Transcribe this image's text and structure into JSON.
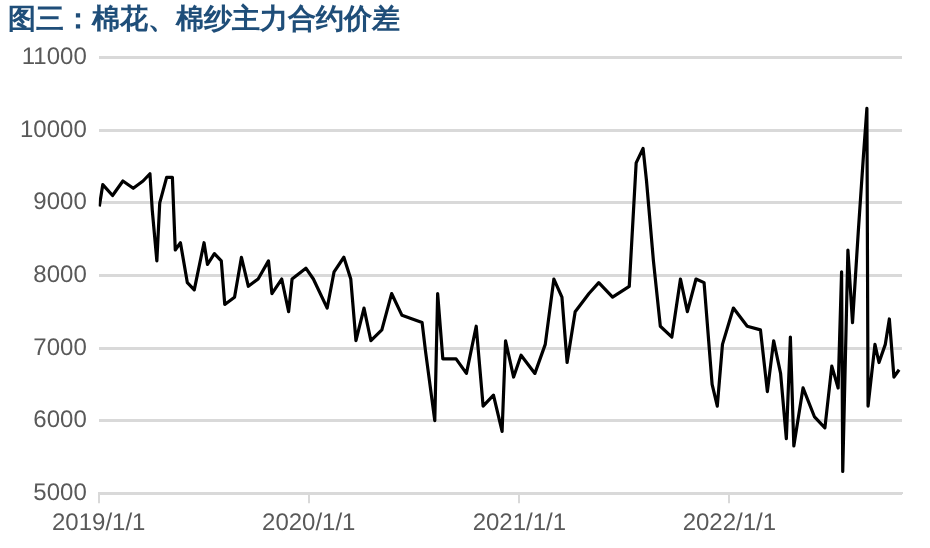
{
  "chart_data": {
    "type": "line",
    "title": "图三：棉花、棉纱主力合约价差",
    "series": [
      {
        "color": "#000000",
        "x": [
          "2019-01-02",
          "2019-01-08",
          "2019-01-25",
          "2019-02-12",
          "2019-03-02",
          "2019-03-19",
          "2019-03-31",
          "2019-04-04",
          "2019-04-12",
          "2019-04-17",
          "2019-04-29",
          "2019-05-09",
          "2019-05-14",
          "2019-05-23",
          "2019-06-04",
          "2019-06-16",
          "2019-07-03",
          "2019-07-09",
          "2019-07-21",
          "2019-08-02",
          "2019-08-08",
          "2019-08-25",
          "2019-09-06",
          "2019-09-18",
          "2019-10-05",
          "2019-10-23",
          "2019-10-29",
          "2019-11-15",
          "2019-11-27",
          "2019-12-03",
          "2019-12-27",
          "2020-01-09",
          "2020-02-02",
          "2020-02-14",
          "2020-03-02",
          "2020-03-14",
          "2020-03-23",
          "2020-04-06",
          "2020-04-18",
          "2020-05-07",
          "2020-05-24",
          "2020-06-11",
          "2020-06-29",
          "2020-07-16",
          "2020-07-22",
          "2020-08-07",
          "2020-08-12",
          "2020-08-21",
          "2020-09-13",
          "2020-10-01",
          "2020-10-18",
          "2020-10-30",
          "2020-11-17",
          "2020-12-02",
          "2020-12-08",
          "2020-12-22",
          "2021-01-04",
          "2021-01-28",
          "2021-02-15",
          "2021-03-02",
          "2021-03-16",
          "2021-03-25",
          "2021-04-08",
          "2021-05-02",
          "2021-05-19",
          "2021-06-12",
          "2021-07-11",
          "2021-07-23",
          "2021-08-04",
          "2021-08-10",
          "2021-08-22",
          "2021-09-03",
          "2021-09-23",
          "2021-10-08",
          "2021-10-20",
          "2021-11-04",
          "2021-11-18",
          "2021-12-02",
          "2021-12-11",
          "2021-12-20",
          "2022-01-08",
          "2022-02-01",
          "2022-02-24",
          "2022-03-08",
          "2022-03-19",
          "2022-03-31",
          "2022-04-10",
          "2022-04-17",
          "2022-04-23",
          "2022-05-09",
          "2022-05-29",
          "2022-06-16",
          "2022-06-28",
          "2022-07-09",
          "2022-07-15",
          "2022-07-17",
          "2022-07-26",
          "2022-08-03",
          "2022-08-13",
          "2022-08-22",
          "2022-08-28",
          "2022-08-30",
          "2022-09-11",
          "2022-09-18",
          "2022-09-29",
          "2022-10-06",
          "2022-10-14",
          "2022-10-23"
        ],
        "values": [
          8950,
          9250,
          9100,
          9300,
          9200,
          9300,
          9400,
          8900,
          8200,
          9000,
          9350,
          9350,
          8350,
          8450,
          7900,
          7800,
          8450,
          8150,
          8300,
          8200,
          7600,
          7700,
          8250,
          7850,
          7950,
          8200,
          7750,
          7950,
          7500,
          7950,
          8100,
          7950,
          7550,
          8050,
          8250,
          7950,
          7100,
          7550,
          7100,
          7250,
          7750,
          7450,
          7400,
          7350,
          6950,
          6000,
          7750,
          6850,
          6850,
          6650,
          7300,
          6200,
          6350,
          5850,
          7100,
          6600,
          6900,
          6650,
          7050,
          7950,
          7700,
          6800,
          7500,
          7750,
          7900,
          7700,
          7850,
          9550,
          9750,
          9300,
          8200,
          7300,
          7150,
          7950,
          7500,
          7950,
          7900,
          6500,
          6200,
          7050,
          7550,
          7300,
          7250,
          6400,
          7100,
          6650,
          5750,
          7150,
          5650,
          6450,
          6050,
          5900,
          6750,
          6450,
          8050,
          5300,
          8350,
          7350,
          8600,
          9650,
          10300,
          6200,
          7050,
          6800,
          7050,
          7400,
          6600,
          6700
        ]
      }
    ],
    "xlim": [
      "2019-01-01",
      "2022-10-28"
    ],
    "xticks": [
      {
        "value": "2019-01-01",
        "label": "2019/1/1"
      },
      {
        "value": "2020-01-01",
        "label": "2020/1/1"
      },
      {
        "value": "2021-01-01",
        "label": "2021/1/1"
      },
      {
        "value": "2022-01-01",
        "label": "2022/1/1"
      }
    ],
    "ylim": [
      5000,
      11000
    ],
    "yticks": [
      5000,
      6000,
      7000,
      8000,
      9000,
      10000,
      11000
    ],
    "grid": "y",
    "marker": "none",
    "line_style": "solid"
  }
}
